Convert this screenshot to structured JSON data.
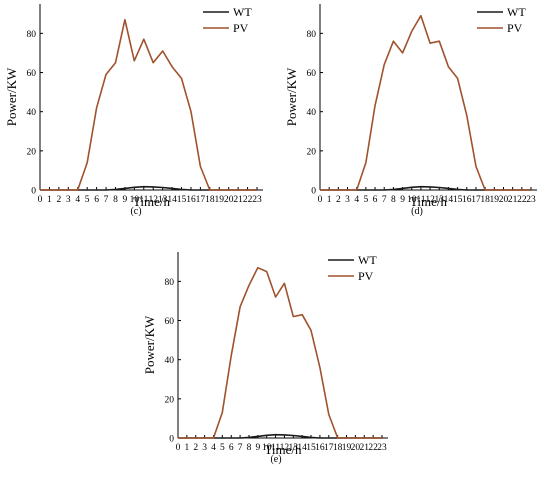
{
  "chart_data": [
    {
      "type": "line",
      "caption": "(c)",
      "xlabel": "Time/h",
      "ylabel": "Power/KW",
      "x": [
        0,
        1,
        2,
        3,
        4,
        5,
        6,
        7,
        8,
        9,
        10,
        11,
        12,
        13,
        14,
        15,
        16,
        17,
        18,
        19,
        20,
        21,
        22,
        23
      ],
      "x_tick_labels": [
        "0",
        "1",
        "2",
        "3",
        "4",
        "5",
        "6",
        "7",
        "8",
        "9",
        "10",
        "11",
        "12",
        "13",
        "14",
        "15",
        "16",
        "17",
        "18",
        "19",
        "20",
        "21",
        "22",
        "23"
      ],
      "xlim": [
        0,
        23
      ],
      "ylim": [
        0,
        95
      ],
      "y_ticks": [
        0,
        20,
        40,
        60,
        80
      ],
      "legend_position": "top-right",
      "series": [
        {
          "name": "WT",
          "color": "#1a1a1a",
          "values": [
            0,
            0,
            0,
            0,
            0,
            0,
            0,
            0,
            0.3,
            0.8,
            1.4,
            1.7,
            1.6,
            1.3,
            0.8,
            0.3,
            0,
            0,
            0,
            0,
            0,
            0,
            0,
            0
          ]
        },
        {
          "name": "PV",
          "color": "#a0522d",
          "values": [
            0,
            0,
            0,
            0,
            0,
            14,
            42,
            59,
            65,
            87,
            66,
            77,
            65,
            71,
            63,
            57,
            40,
            12,
            0,
            0,
            0,
            0,
            0,
            0
          ]
        }
      ]
    },
    {
      "type": "line",
      "caption": "(d)",
      "xlabel": "Time/h",
      "ylabel": "Power/KW",
      "x": [
        0,
        1,
        2,
        3,
        4,
        5,
        6,
        7,
        8,
        9,
        10,
        11,
        12,
        13,
        14,
        15,
        16,
        17,
        18,
        19,
        20,
        21,
        22,
        23
      ],
      "x_tick_labels": [
        "0",
        "1",
        "2",
        "3",
        "4",
        "5",
        "6",
        "7",
        "8",
        "9",
        "10",
        "11",
        "12",
        "13",
        "14",
        "15",
        "16",
        "17",
        "18",
        "19",
        "20",
        "21",
        "22",
        "23"
      ],
      "xlim": [
        0,
        23
      ],
      "ylim": [
        0,
        95
      ],
      "y_ticks": [
        0,
        20,
        40,
        60,
        80
      ],
      "legend_position": "top-right",
      "series": [
        {
          "name": "WT",
          "color": "#1a1a1a",
          "values": [
            0,
            0,
            0,
            0,
            0,
            0,
            0,
            0,
            0.3,
            0.8,
            1.4,
            1.7,
            1.6,
            1.3,
            0.8,
            0.3,
            0,
            0,
            0,
            0,
            0,
            0,
            0,
            0
          ]
        },
        {
          "name": "PV",
          "color": "#a0522d",
          "values": [
            0,
            0,
            0,
            0,
            0,
            14,
            43,
            64,
            76,
            70,
            81,
            89,
            75,
            76,
            63,
            57,
            38,
            12,
            0,
            0,
            0,
            0,
            0,
            0
          ]
        }
      ]
    },
    {
      "type": "line",
      "caption": "(e)",
      "xlabel": "Time/h",
      "ylabel": "Power/KW",
      "x": [
        0,
        1,
        2,
        3,
        4,
        5,
        6,
        7,
        8,
        9,
        10,
        11,
        12,
        13,
        14,
        15,
        16,
        17,
        18,
        19,
        20,
        21,
        22,
        23
      ],
      "x_tick_labels": [
        "0",
        "1",
        "2",
        "3",
        "4",
        "5",
        "6",
        "7",
        "8",
        "9",
        "10",
        "11",
        "12",
        "13",
        "14",
        "15",
        "16",
        "17",
        "18",
        "19",
        "20",
        "21",
        "22",
        "23"
      ],
      "xlim": [
        0,
        23
      ],
      "ylim": [
        0,
        95
      ],
      "y_ticks": [
        0,
        20,
        40,
        60,
        80
      ],
      "legend_position": "top-right",
      "series": [
        {
          "name": "WT",
          "color": "#1a1a1a",
          "values": [
            0,
            0,
            0,
            0,
            0,
            0,
            0,
            0,
            0.3,
            0.8,
            1.4,
            1.7,
            1.6,
            1.3,
            0.8,
            0.3,
            0,
            0,
            0,
            0,
            0,
            0,
            0,
            0
          ]
        },
        {
          "name": "PV",
          "color": "#a0522d",
          "values": [
            0,
            0,
            0,
            0,
            0,
            13,
            42,
            67,
            78,
            87,
            85,
            72,
            79,
            62,
            63,
            55,
            36,
            12,
            0,
            0,
            0,
            0,
            0,
            0
          ]
        }
      ]
    }
  ]
}
